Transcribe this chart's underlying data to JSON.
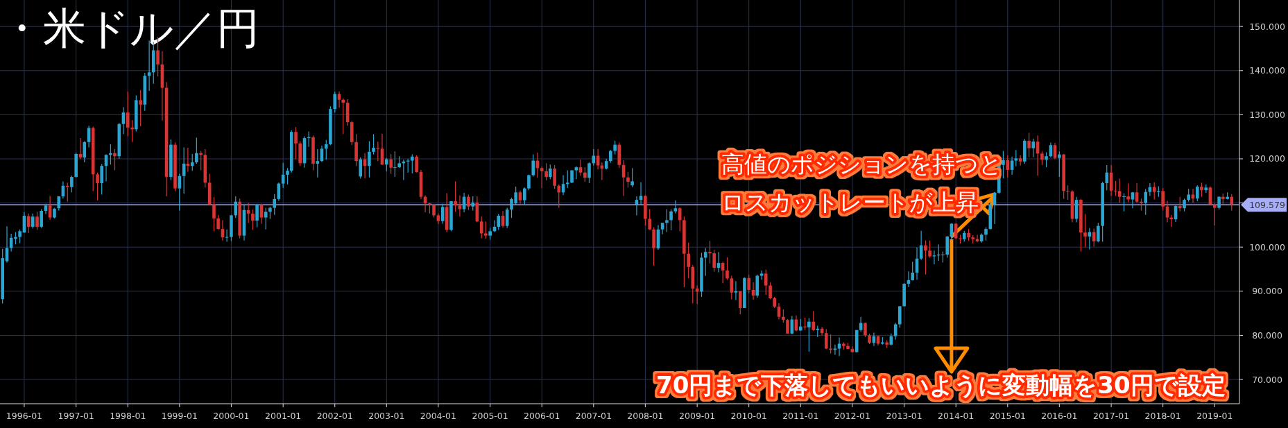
{
  "chart_data": {
    "type": "candlestick",
    "title": "・米ドル／円",
    "x": [
      "1995-08",
      "1995-09",
      "1995-10",
      "1995-11",
      "1995-12",
      "1996-01",
      "1996-02",
      "1996-03",
      "1996-04",
      "1996-05",
      "1996-06",
      "1996-07",
      "1996-08",
      "1996-09",
      "1996-10",
      "1996-11",
      "1996-12",
      "1997-01",
      "1997-02",
      "1997-03",
      "1997-04",
      "1997-05",
      "1997-06",
      "1997-07",
      "1997-08",
      "1997-09",
      "1997-10",
      "1997-11",
      "1997-12",
      "1998-01",
      "1998-02",
      "1998-03",
      "1998-04",
      "1998-05",
      "1998-06",
      "1998-07",
      "1998-08",
      "1998-09",
      "1998-10",
      "1998-11",
      "1998-12",
      "1999-01",
      "1999-02",
      "1999-03",
      "1999-04",
      "1999-05",
      "1999-06",
      "1999-07",
      "1999-08",
      "1999-09",
      "1999-10",
      "1999-11",
      "1999-12",
      "2000-01",
      "2000-02",
      "2000-03",
      "2000-04",
      "2000-05",
      "2000-06",
      "2000-07",
      "2000-08",
      "2000-09",
      "2000-10",
      "2000-11",
      "2000-12",
      "2001-01",
      "2001-02",
      "2001-03",
      "2001-04",
      "2001-05",
      "2001-06",
      "2001-07",
      "2001-08",
      "2001-09",
      "2001-10",
      "2001-11",
      "2001-12",
      "2002-01",
      "2002-02",
      "2002-03",
      "2002-04",
      "2002-05",
      "2002-06",
      "2002-07",
      "2002-08",
      "2002-09",
      "2002-10",
      "2002-11",
      "2002-12",
      "2003-01",
      "2003-02",
      "2003-03",
      "2003-04",
      "2003-05",
      "2003-06",
      "2003-07",
      "2003-08",
      "2003-09",
      "2003-10",
      "2003-11",
      "2003-12",
      "2004-01",
      "2004-02",
      "2004-03",
      "2004-04",
      "2004-05",
      "2004-06",
      "2004-07",
      "2004-08",
      "2004-09",
      "2004-10",
      "2004-11",
      "2004-12",
      "2005-01",
      "2005-02",
      "2005-03",
      "2005-04",
      "2005-05",
      "2005-06",
      "2005-07",
      "2005-08",
      "2005-09",
      "2005-10",
      "2005-11",
      "2005-12",
      "2006-01",
      "2006-02",
      "2006-03",
      "2006-04",
      "2006-05",
      "2006-06",
      "2006-07",
      "2006-08",
      "2006-09",
      "2006-10",
      "2006-11",
      "2006-12",
      "2007-01",
      "2007-02",
      "2007-03",
      "2007-04",
      "2007-05",
      "2007-06",
      "2007-07",
      "2007-08",
      "2007-09",
      "2007-10",
      "2007-11",
      "2007-12",
      "2008-01",
      "2008-02",
      "2008-03",
      "2008-04",
      "2008-05",
      "2008-06",
      "2008-07",
      "2008-08",
      "2008-09",
      "2008-10",
      "2008-11",
      "2008-12",
      "2009-01",
      "2009-02",
      "2009-03",
      "2009-04",
      "2009-05",
      "2009-06",
      "2009-07",
      "2009-08",
      "2009-09",
      "2009-10",
      "2009-11",
      "2009-12",
      "2010-01",
      "2010-02",
      "2010-03",
      "2010-04",
      "2010-05",
      "2010-06",
      "2010-07",
      "2010-08",
      "2010-09",
      "2010-10",
      "2010-11",
      "2010-12",
      "2011-01",
      "2011-02",
      "2011-03",
      "2011-04",
      "2011-05",
      "2011-06",
      "2011-07",
      "2011-08",
      "2011-09",
      "2011-10",
      "2011-11",
      "2011-12",
      "2012-01",
      "2012-02",
      "2012-03",
      "2012-04",
      "2012-05",
      "2012-06",
      "2012-07",
      "2012-08",
      "2012-09",
      "2012-10",
      "2012-11",
      "2012-12",
      "2013-01",
      "2013-02",
      "2013-03",
      "2013-04",
      "2013-05",
      "2013-06",
      "2013-07",
      "2013-08",
      "2013-09",
      "2013-10",
      "2013-11",
      "2013-12",
      "2014-01",
      "2014-02",
      "2014-03",
      "2014-04",
      "2014-05",
      "2014-06",
      "2014-07",
      "2014-08",
      "2014-09",
      "2014-10",
      "2014-11",
      "2014-12",
      "2015-01",
      "2015-02",
      "2015-03",
      "2015-04",
      "2015-05",
      "2015-06",
      "2015-07",
      "2015-08",
      "2015-09",
      "2015-10",
      "2015-11",
      "2015-12",
      "2016-01",
      "2016-02",
      "2016-03",
      "2016-04",
      "2016-05",
      "2016-06",
      "2016-07",
      "2016-08",
      "2016-09",
      "2016-10",
      "2016-11",
      "2016-12",
      "2017-01",
      "2017-02",
      "2017-03",
      "2017-04",
      "2017-05",
      "2017-06",
      "2017-07",
      "2017-08",
      "2017-09",
      "2017-10",
      "2017-11",
      "2017-12",
      "2018-01",
      "2018-02",
      "2018-03",
      "2018-04",
      "2018-05",
      "2018-06",
      "2018-07",
      "2018-08",
      "2018-09",
      "2018-10",
      "2018-11",
      "2018-12",
      "2019-01",
      "2019-02",
      "2019-03",
      "2019-04",
      "2019-05"
    ],
    "ohlc": [
      [
        88.2,
        99.6,
        87.2,
        97.5
      ],
      [
        96.8,
        104.7,
        96.5,
        99.8
      ],
      [
        99.8,
        103.0,
        99.0,
        102.1
      ],
      [
        101.9,
        103.4,
        100.6,
        102.3
      ],
      [
        102.3,
        104.0,
        100.9,
        103.6
      ],
      [
        103.3,
        107.9,
        103.2,
        107.1
      ],
      [
        107.0,
        107.6,
        103.2,
        104.6
      ],
      [
        104.6,
        107.6,
        104.2,
        106.9
      ],
      [
        106.9,
        108.0,
        103.9,
        104.6
      ],
      [
        104.6,
        108.6,
        104.3,
        108.2
      ],
      [
        108.2,
        109.8,
        107.5,
        109.4
      ],
      [
        109.4,
        111.6,
        106.2,
        106.7
      ],
      [
        106.7,
        108.9,
        106.5,
        108.7
      ],
      [
        108.8,
        111.5,
        108.3,
        111.5
      ],
      [
        111.5,
        114.9,
        111.0,
        113.9
      ],
      [
        113.9,
        114.6,
        110.3,
        113.6
      ],
      [
        113.6,
        116.2,
        112.4,
        115.9
      ],
      [
        115.9,
        121.4,
        115.8,
        121.1
      ],
      [
        121.1,
        124.7,
        119.9,
        120.3
      ],
      [
        120.3,
        124.0,
        119.2,
        123.8
      ],
      [
        123.8,
        127.5,
        122.6,
        127.0
      ],
      [
        127.0,
        127.3,
        112.7,
        116.5
      ],
      [
        116.5,
        116.9,
        110.6,
        114.5
      ],
      [
        114.5,
        118.8,
        111.9,
        118.4
      ],
      [
        118.4,
        121.0,
        114.9,
        120.9
      ],
      [
        120.9,
        123.3,
        118.7,
        121.3
      ],
      [
        121.3,
        122.2,
        117.4,
        120.6
      ],
      [
        120.6,
        128.1,
        120.0,
        127.9
      ],
      [
        127.9,
        131.7,
        125.6,
        130.5
      ],
      [
        130.5,
        135.3,
        125.1,
        127.1
      ],
      [
        127.1,
        128.8,
        123.8,
        126.7
      ],
      [
        126.7,
        134.4,
        126.2,
        133.3
      ],
      [
        133.3,
        135.6,
        127.4,
        132.3
      ],
      [
        132.3,
        139.5,
        130.9,
        138.8
      ],
      [
        138.8,
        146.8,
        135.4,
        139.6
      ],
      [
        139.6,
        146.5,
        137.0,
        144.6
      ],
      [
        144.6,
        147.6,
        138.7,
        141.4
      ],
      [
        141.4,
        144.4,
        128.7,
        136.1
      ],
      [
        136.1,
        137.4,
        111.5,
        115.9
      ],
      [
        115.9,
        124.4,
        115.2,
        123.2
      ],
      [
        123.2,
        123.7,
        112.7,
        113.3
      ],
      [
        113.3,
        116.6,
        108.3,
        116.1
      ],
      [
        116.1,
        122.6,
        112.1,
        118.9
      ],
      [
        118.9,
        122.5,
        117.1,
        118.4
      ],
      [
        118.4,
        121.1,
        117.3,
        119.2
      ],
      [
        119.2,
        124.8,
        118.9,
        121.3
      ],
      [
        121.3,
        121.8,
        117.4,
        120.9
      ],
      [
        120.9,
        122.2,
        113.5,
        114.6
      ],
      [
        114.6,
        116.6,
        109.5,
        109.6
      ],
      [
        109.6,
        111.3,
        103.6,
        106.5
      ],
      [
        106.5,
        107.3,
        104.0,
        104.1
      ],
      [
        104.1,
        106.1,
        101.5,
        102.2
      ],
      [
        102.2,
        104.0,
        101.2,
        102.3
      ],
      [
        102.3,
        107.3,
        101.4,
        107.2
      ],
      [
        107.2,
        111.5,
        106.6,
        110.3
      ],
      [
        110.3,
        111.0,
        102.0,
        102.6
      ],
      [
        102.6,
        109.5,
        101.5,
        108.4
      ],
      [
        108.4,
        110.0,
        105.5,
        107.6
      ],
      [
        107.6,
        108.5,
        103.9,
        106.0
      ],
      [
        106.0,
        109.8,
        104.5,
        109.6
      ],
      [
        109.6,
        109.8,
        105.3,
        106.7
      ],
      [
        106.7,
        108.9,
        104.0,
        108.0
      ],
      [
        108.0,
        109.1,
        106.4,
        108.9
      ],
      [
        108.9,
        112.0,
        107.3,
        110.9
      ],
      [
        110.9,
        114.6,
        110.5,
        114.4
      ],
      [
        114.4,
        119.1,
        113.4,
        116.4
      ],
      [
        116.4,
        117.9,
        114.2,
        117.3
      ],
      [
        117.3,
        126.5,
        116.9,
        126.1
      ],
      [
        126.1,
        127.2,
        119.9,
        123.5
      ],
      [
        123.5,
        124.0,
        118.4,
        119.0
      ],
      [
        119.0,
        125.1,
        118.0,
        124.7
      ],
      [
        124.7,
        126.2,
        122.7,
        124.9
      ],
      [
        124.9,
        125.3,
        117.4,
        118.9
      ],
      [
        118.9,
        122.2,
        115.8,
        119.5
      ],
      [
        119.5,
        123.0,
        119.3,
        122.3
      ],
      [
        122.3,
        124.3,
        119.8,
        123.3
      ],
      [
        123.3,
        131.9,
        123.1,
        131.3
      ],
      [
        131.3,
        135.2,
        130.5,
        134.7
      ],
      [
        134.7,
        135.3,
        131.6,
        133.4
      ],
      [
        133.4,
        133.7,
        125.6,
        132.7
      ],
      [
        132.7,
        133.5,
        127.5,
        128.3
      ],
      [
        128.3,
        128.6,
        123.1,
        123.8
      ],
      [
        123.8,
        125.6,
        118.4,
        119.5
      ],
      [
        116.0,
        120.3,
        115.5,
        119.9
      ],
      [
        119.9,
        121.3,
        115.6,
        118.4
      ],
      [
        118.4,
        124.0,
        115.8,
        121.6
      ],
      [
        121.6,
        125.6,
        121.0,
        122.5
      ],
      [
        122.5,
        123.9,
        119.5,
        122.3
      ],
      [
        122.3,
        125.7,
        118.6,
        118.7
      ],
      [
        118.7,
        120.2,
        117.2,
        119.9
      ],
      [
        119.9,
        121.1,
        116.6,
        118.0
      ],
      [
        118.0,
        121.7,
        115.9,
        118.1
      ],
      [
        118.1,
        120.6,
        118.0,
        119.0
      ],
      [
        119.0,
        119.8,
        115.2,
        119.4
      ],
      [
        119.4,
        120.0,
        116.9,
        119.6
      ],
      [
        119.6,
        121.0,
        116.7,
        120.5
      ],
      [
        120.5,
        120.8,
        116.9,
        117.0
      ],
      [
        117.0,
        117.5,
        110.9,
        111.4
      ],
      [
        111.4,
        111.7,
        107.9,
        109.9
      ],
      [
        109.9,
        110.0,
        107.6,
        109.6
      ],
      [
        109.6,
        109.8,
        106.7,
        107.2
      ],
      [
        107.2,
        107.6,
        105.2,
        105.9
      ],
      [
        105.9,
        109.8,
        105.3,
        109.1
      ],
      [
        109.1,
        112.2,
        103.4,
        103.9
      ],
      [
        103.9,
        110.4,
        103.6,
        110.4
      ],
      [
        110.4,
        114.9,
        108.0,
        109.4
      ],
      [
        109.4,
        111.7,
        106.9,
        108.6
      ],
      [
        108.6,
        112.3,
        107.9,
        111.4
      ],
      [
        111.4,
        111.9,
        108.4,
        109.2
      ],
      [
        109.2,
        111.5,
        108.3,
        110.1
      ],
      [
        110.1,
        111.5,
        105.6,
        105.8
      ],
      [
        105.8,
        106.9,
        102.0,
        103.1
      ],
      [
        103.1,
        105.8,
        101.9,
        102.6
      ],
      [
        102.6,
        104.4,
        101.7,
        103.6
      ],
      [
        103.6,
        106.1,
        103.4,
        104.6
      ],
      [
        104.6,
        107.5,
        103.9,
        107.1
      ],
      [
        107.1,
        108.2,
        104.4,
        104.8
      ],
      [
        104.8,
        108.9,
        104.3,
        108.5
      ],
      [
        108.5,
        111.2,
        106.6,
        110.9
      ],
      [
        109.9,
        113.7,
        109.6,
        112.4
      ],
      [
        112.4,
        112.8,
        109.8,
        110.6
      ],
      [
        110.6,
        113.5,
        109.5,
        113.3
      ],
      [
        113.3,
        116.4,
        112.9,
        116.3
      ],
      [
        116.3,
        121.0,
        116.0,
        119.6
      ],
      [
        119.6,
        121.4,
        115.7,
        117.9
      ],
      [
        117.9,
        118.3,
        113.4,
        117.2
      ],
      [
        117.2,
        119.0,
        115.1,
        115.9
      ],
      [
        115.9,
        118.7,
        115.4,
        117.8
      ],
      [
        117.8,
        118.6,
        113.2,
        113.9
      ],
      [
        113.9,
        114.2,
        108.9,
        112.4
      ],
      [
        112.4,
        116.3,
        111.8,
        114.3
      ],
      [
        114.3,
        117.4,
        113.4,
        114.6
      ],
      [
        114.6,
        117.4,
        114.5,
        117.4
      ],
      [
        117.4,
        118.3,
        115.4,
        118.1
      ],
      [
        118.1,
        119.8,
        116.2,
        116.9
      ],
      [
        116.9,
        118.1,
        114.8,
        115.7
      ],
      [
        115.7,
        119.2,
        114.5,
        119.0
      ],
      [
        119.0,
        122.2,
        118.5,
        120.7
      ],
      [
        120.7,
        122.2,
        117.6,
        118.5
      ],
      [
        118.5,
        119.2,
        115.2,
        117.8
      ],
      [
        117.8,
        120.0,
        117.6,
        119.5
      ],
      [
        119.5,
        122.0,
        119.1,
        121.8
      ],
      [
        121.8,
        124.1,
        121.0,
        123.2
      ],
      [
        123.2,
        123.7,
        117.9,
        118.6
      ],
      [
        118.6,
        119.7,
        111.6,
        115.8
      ],
      [
        115.8,
        117.0,
        113.5,
        114.8
      ],
      [
        114.0,
        117.9,
        113.6,
        114.9
      ],
      [
        109.6,
        111.5,
        107.2,
        110.7
      ],
      [
        110.7,
        114.7,
        109.6,
        111.6
      ],
      [
        111.6,
        111.8,
        104.9,
        106.4
      ],
      [
        106.4,
        108.6,
        103.9,
        104.0
      ],
      [
        104.0,
        104.5,
        95.8,
        99.7
      ],
      [
        99.7,
        105.0,
        99.4,
        104.0
      ],
      [
        104.0,
        105.5,
        102.9,
        105.5
      ],
      [
        105.5,
        108.6,
        103.4,
        106.1
      ],
      [
        106.1,
        108.6,
        103.8,
        108.1
      ],
      [
        108.1,
        110.6,
        107.6,
        108.8
      ],
      [
        108.8,
        109.0,
        103.6,
        106.1
      ],
      [
        106.1,
        106.9,
        90.9,
        98.5
      ],
      [
        98.5,
        101.0,
        92.9,
        95.5
      ],
      [
        95.5,
        95.9,
        87.2,
        90.6
      ],
      [
        90.6,
        91.3,
        87.1,
        89.9
      ],
      [
        89.9,
        98.7,
        88.7,
        97.6
      ],
      [
        97.6,
        99.8,
        93.5,
        98.9
      ],
      [
        98.9,
        101.4,
        96.3,
        98.6
      ],
      [
        98.6,
        99.4,
        94.4,
        95.3
      ],
      [
        95.3,
        98.9,
        94.3,
        96.4
      ],
      [
        96.4,
        96.7,
        91.8,
        94.7
      ],
      [
        94.7,
        97.7,
        92.6,
        92.9
      ],
      [
        92.9,
        93.5,
        88.2,
        89.7
      ],
      [
        89.7,
        92.3,
        88.0,
        90.0
      ],
      [
        90.0,
        90.0,
        84.8,
        86.2
      ],
      [
        86.2,
        93.1,
        86.2,
        93.0
      ],
      [
        93.0,
        93.7,
        89.5,
        90.3
      ],
      [
        90.3,
        92.0,
        88.1,
        89.0
      ],
      [
        89.0,
        93.8,
        88.5,
        93.5
      ],
      [
        93.5,
        94.7,
        92.6,
        94.0
      ],
      [
        94.0,
        94.9,
        89.2,
        91.3
      ],
      [
        91.3,
        92.0,
        88.2,
        88.4
      ],
      [
        88.4,
        88.7,
        86.2,
        86.5
      ],
      [
        86.5,
        87.3,
        83.6,
        84.2
      ],
      [
        84.2,
        85.9,
        82.9,
        83.5
      ],
      [
        83.5,
        83.7,
        80.4,
        80.4
      ],
      [
        80.4,
        84.4,
        80.3,
        83.6
      ],
      [
        83.6,
        84.5,
        80.9,
        81.1
      ],
      [
        81.1,
        83.7,
        81.0,
        82.0
      ],
      [
        82.0,
        84.0,
        81.2,
        81.8
      ],
      [
        81.8,
        83.9,
        76.3,
        83.1
      ],
      [
        83.1,
        85.5,
        81.0,
        81.2
      ],
      [
        81.2,
        82.2,
        79.6,
        81.5
      ],
      [
        81.5,
        81.9,
        80.0,
        80.5
      ],
      [
        80.5,
        81.4,
        76.9,
        77.0
      ],
      [
        77.0,
        80.2,
        75.9,
        76.7
      ],
      [
        76.7,
        77.9,
        75.6,
        77.0
      ],
      [
        77.0,
        79.5,
        75.3,
        78.1
      ],
      [
        78.1,
        78.4,
        76.8,
        77.6
      ],
      [
        77.6,
        78.3,
        76.9,
        76.9
      ],
      [
        76.9,
        77.5,
        76.1,
        76.2
      ],
      [
        76.2,
        81.2,
        76.1,
        81.2
      ],
      [
        81.2,
        84.2,
        80.8,
        82.8
      ],
      [
        82.8,
        82.9,
        79.6,
        80.0
      ],
      [
        80.0,
        80.4,
        78.0,
        78.3
      ],
      [
        78.3,
        80.6,
        77.6,
        79.8
      ],
      [
        79.8,
        79.9,
        77.7,
        78.1
      ],
      [
        78.1,
        79.6,
        77.9,
        78.4
      ],
      [
        78.4,
        78.9,
        77.1,
        77.9
      ],
      [
        77.9,
        80.4,
        77.7,
        79.8
      ],
      [
        79.8,
        82.8,
        79.0,
        82.5
      ],
      [
        82.5,
        86.6,
        81.7,
        86.6
      ],
      [
        86.6,
        91.8,
        86.5,
        91.7
      ],
      [
        91.7,
        94.5,
        90.9,
        92.5
      ],
      [
        92.5,
        96.7,
        92.4,
        94.2
      ],
      [
        94.2,
        99.9,
        92.6,
        97.4
      ],
      [
        97.4,
        103.7,
        97.1,
        100.4
      ],
      [
        100.4,
        101.5,
        93.8,
        99.2
      ],
      [
        99.2,
        101.5,
        97.6,
        97.9
      ],
      [
        97.9,
        99.2,
        96.1,
        98.1
      ],
      [
        98.1,
        100.6,
        96.9,
        98.3
      ],
      [
        98.3,
        99.0,
        96.5,
        98.3
      ],
      [
        98.3,
        102.5,
        97.6,
        102.4
      ],
      [
        102.4,
        105.4,
        101.6,
        105.3
      ],
      [
        105.3,
        105.4,
        101.8,
        102.0
      ],
      [
        102.0,
        102.8,
        100.8,
        101.8
      ],
      [
        101.8,
        103.7,
        101.2,
        103.2
      ],
      [
        103.2,
        104.1,
        101.4,
        102.2
      ],
      [
        102.2,
        102.7,
        100.8,
        101.8
      ],
      [
        101.8,
        102.8,
        101.1,
        101.3
      ],
      [
        101.3,
        103.1,
        101.0,
        102.8
      ],
      [
        102.8,
        104.5,
        101.5,
        104.1
      ],
      [
        104.1,
        110.1,
        104.0,
        109.6
      ],
      [
        109.6,
        112.5,
        105.2,
        112.3
      ],
      [
        112.3,
        118.9,
        112.1,
        118.6
      ],
      [
        118.6,
        121.8,
        115.6,
        119.7
      ],
      [
        119.7,
        120.8,
        115.8,
        117.5
      ],
      [
        117.5,
        120.5,
        116.4,
        119.6
      ],
      [
        119.6,
        122.0,
        118.3,
        120.1
      ],
      [
        120.1,
        120.8,
        118.5,
        119.4
      ],
      [
        119.4,
        124.5,
        118.9,
        124.1
      ],
      [
        124.1,
        125.9,
        120.4,
        122.4
      ],
      [
        122.4,
        124.6,
        120.4,
        123.9
      ],
      [
        123.9,
        125.3,
        116.2,
        121.2
      ],
      [
        121.2,
        121.7,
        118.6,
        119.8
      ],
      [
        119.8,
        121.5,
        118.1,
        120.6
      ],
      [
        120.6,
        123.7,
        120.3,
        123.1
      ],
      [
        123.1,
        123.6,
        119.9,
        120.2
      ],
      [
        120.2,
        121.7,
        115.9,
        121.0
      ],
      [
        121.0,
        121.1,
        110.9,
        112.7
      ],
      [
        112.7,
        114.0,
        110.7,
        112.6
      ],
      [
        112.6,
        112.9,
        105.6,
        106.4
      ],
      [
        106.4,
        111.4,
        105.6,
        110.7
      ],
      [
        110.7,
        110.9,
        99.0,
        103.3
      ],
      [
        103.3,
        107.5,
        99.9,
        102.4
      ],
      [
        102.4,
        104.3,
        99.5,
        103.4
      ],
      [
        103.4,
        104.2,
        100.1,
        101.3
      ],
      [
        101.3,
        105.5,
        101.1,
        104.8
      ],
      [
        104.8,
        114.8,
        101.2,
        114.5
      ],
      [
        114.5,
        118.6,
        112.9,
        116.9
      ],
      [
        116.9,
        118.6,
        111.6,
        112.8
      ],
      [
        112.8,
        115.0,
        111.6,
        112.7
      ],
      [
        112.7,
        115.5,
        110.1,
        111.4
      ],
      [
        111.4,
        112.2,
        108.1,
        111.5
      ],
      [
        111.5,
        114.4,
        110.2,
        110.8
      ],
      [
        110.8,
        112.5,
        108.8,
        112.4
      ],
      [
        112.4,
        114.5,
        110.1,
        110.3
      ],
      [
        110.3,
        111.0,
        108.3,
        110.0
      ],
      [
        110.0,
        113.2,
        107.3,
        112.5
      ],
      [
        112.5,
        114.5,
        111.6,
        113.6
      ],
      [
        113.6,
        114.7,
        110.8,
        112.5
      ],
      [
        112.5,
        113.8,
        111.4,
        112.7
      ],
      [
        112.7,
        113.4,
        108.3,
        109.2
      ],
      [
        109.2,
        110.5,
        105.6,
        106.7
      ],
      [
        106.7,
        107.3,
        104.6,
        106.3
      ],
      [
        106.3,
        109.6,
        105.7,
        109.3
      ],
      [
        109.3,
        111.4,
        108.1,
        108.8
      ],
      [
        108.8,
        111.0,
        108.1,
        110.7
      ],
      [
        110.7,
        113.2,
        110.3,
        111.9
      ],
      [
        111.9,
        113.2,
        110.1,
        111.0
      ],
      [
        111.0,
        114.0,
        110.4,
        113.7
      ],
      [
        113.7,
        114.6,
        111.4,
        112.9
      ],
      [
        112.9,
        114.2,
        112.3,
        113.5
      ],
      [
        113.5,
        113.8,
        109.6,
        109.7
      ],
      [
        109.7,
        109.9,
        104.9,
        108.9
      ],
      [
        108.9,
        111.5,
        108.5,
        111.4
      ],
      [
        111.4,
        112.1,
        109.7,
        110.9
      ],
      [
        110.9,
        112.4,
        110.8,
        111.4
      ],
      [
        111.4,
        112.0,
        108.3,
        109.6
      ]
    ],
    "xlim": [
      "1995-07-14",
      "2019-06-25"
    ],
    "xticks": [
      "1996-01",
      "1997-01",
      "1998-01",
      "1999-01",
      "2000-01",
      "2001-01",
      "2002-01",
      "2003-01",
      "2004-01",
      "2005-01",
      "2006-01",
      "2007-01",
      "2008-01",
      "2009-01",
      "2010-01",
      "2011-01",
      "2012-01",
      "2013-01",
      "2014-01",
      "2015-01",
      "2016-01",
      "2017-01",
      "2018-01",
      "2019-01"
    ],
    "ylim": [
      64.5,
      156
    ],
    "yticks": [
      {
        "value": 70,
        "label": "70.000"
      },
      {
        "value": 80,
        "label": "80.000"
      },
      {
        "value": 90,
        "label": "90.000"
      },
      {
        "value": 100,
        "label": "100.000"
      },
      {
        "value": 110,
        "label": null
      },
      {
        "value": 120,
        "label": "120.000"
      },
      {
        "value": 130,
        "label": "130.000"
      },
      {
        "value": 140,
        "label": "140.000"
      },
      {
        "value": 150,
        "label": "150.000"
      }
    ],
    "grid": true,
    "ref_lines": [
      {
        "axis": "y",
        "value": 109.579,
        "label": "109.579",
        "color": "#a8aef5"
      }
    ],
    "annotations": [
      {
        "text": "高値のポジションを持つとロスカットレートが上昇",
        "x": "2014-10",
        "y": 112
      },
      {
        "text": "70円まで下落してもいいように変動幅を30円で設定",
        "x": "2013-12",
        "y": 102.4
      }
    ]
  }
}
